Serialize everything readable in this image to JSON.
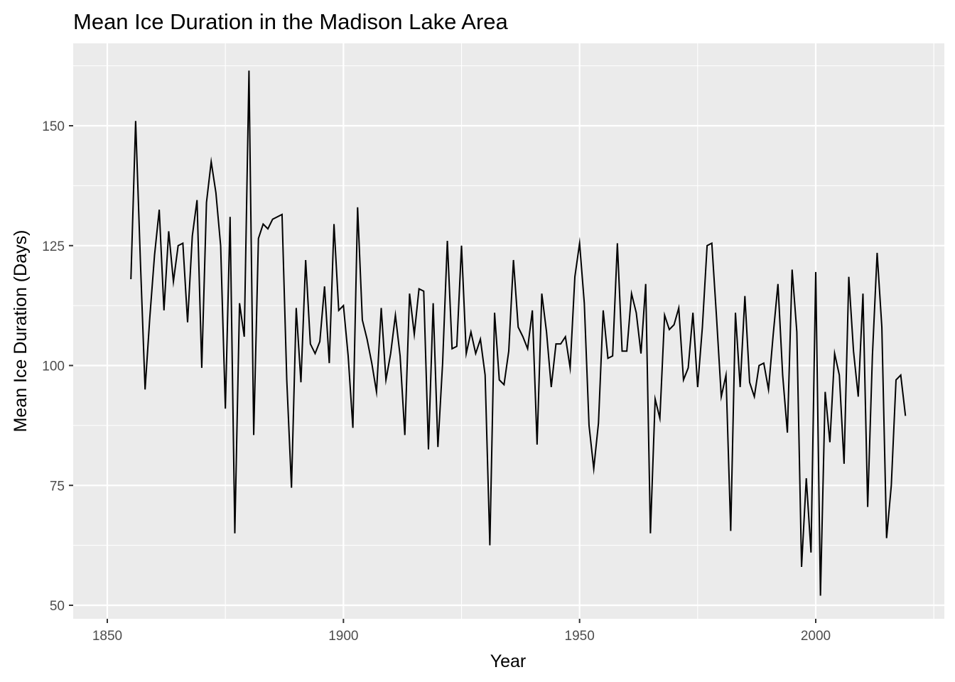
{
  "chart_data": {
    "type": "line",
    "title": "Mean Ice Duration in the Madison Lake Area",
    "xlabel": "Year",
    "ylabel": "Mean Ice Duration (Days)",
    "xlim": [
      1842,
      1327
    ],
    "ylim": [
      48,
      164
    ],
    "x_ticks": [
      1850,
      1900,
      1950,
      2000
    ],
    "y_ticks": [
      50,
      75,
      100,
      125,
      150
    ],
    "x_tick_labels": [
      "1850",
      "1900",
      "1950",
      "2000"
    ],
    "y_tick_labels": [
      "50",
      "75",
      "100",
      "125",
      "150"
    ],
    "grid": true,
    "panel_background": "#ebebeb",
    "grid_color": "#ffffff",
    "line_color": "#000000",
    "series": [
      {
        "x": [
          1855,
          1856,
          1857,
          1858,
          1859,
          1860,
          1861,
          1862,
          1863,
          1864,
          1865,
          1866,
          1867,
          1868,
          1869,
          1870,
          1871,
          1872,
          1873,
          1874,
          1875,
          1876,
          1877,
          1878,
          1879,
          1880,
          1881,
          1882,
          1883,
          1884,
          1885,
          1886,
          1887,
          1888,
          1889,
          1890,
          1891,
          1892,
          1893,
          1894,
          1895,
          1896,
          1897,
          1898,
          1899,
          1900,
          1901,
          1902,
          1903,
          1904,
          1905,
          1906,
          1907,
          1908,
          1909,
          1910,
          1911,
          1912,
          1913,
          1914,
          1915,
          1916,
          1917,
          1918,
          1919,
          1920,
          1921,
          1922,
          1923,
          1924,
          1925,
          1926,
          1927,
          1928,
          1929,
          1930,
          1931,
          1932,
          1933,
          1934,
          1935,
          1936,
          1937,
          1938,
          1939,
          1940,
          1941,
          1942,
          1943,
          1944,
          1945,
          1946,
          1947,
          1948,
          1949,
          1950,
          1951,
          1952,
          1953,
          1954,
          1955,
          1956,
          1957,
          1958,
          1959,
          1960,
          1961,
          1962,
          1963,
          1964,
          1965,
          1966,
          1967,
          1968,
          1969,
          1970,
          1971,
          1972,
          1973,
          1974,
          1975,
          1976,
          1977,
          1978,
          1979,
          1980,
          1981,
          1982,
          1983,
          1984,
          1985,
          1986,
          1987,
          1988,
          1989,
          1990,
          1991,
          1992,
          1993,
          1994,
          1995,
          1996,
          1997,
          1998,
          1999,
          2000,
          2001,
          2002,
          2003,
          2004,
          2005,
          2006,
          2007,
          2008,
          2009,
          2010,
          2011,
          2012,
          2013,
          2014,
          2015,
          2016,
          2017,
          2018,
          2019
        ],
        "values": [
          118,
          151,
          122,
          95,
          110,
          123,
          132.5,
          111.5,
          128,
          117.5,
          125,
          125.5,
          109,
          127,
          134.5,
          99.5,
          134,
          142.5,
          136,
          125,
          91,
          131,
          65,
          113,
          106,
          161.5,
          85.5,
          126.5,
          129.5,
          128.5,
          130.5,
          131,
          131.5,
          97,
          74.5,
          112,
          96.5,
          122,
          104.5,
          102.5,
          105,
          116.5,
          100.5,
          129.5,
          111.5,
          112.5,
          102,
          87,
          133,
          109.5,
          105.5,
          100.5,
          94.5,
          112,
          97,
          102.5,
          110.5,
          102,
          85.5,
          115,
          106.5,
          116,
          115.5,
          82.5,
          113,
          83,
          100.5,
          126,
          103.5,
          104,
          125,
          102.5,
          107,
          102.5,
          105.5,
          98,
          62.5,
          111,
          97,
          96,
          103,
          122,
          108,
          106,
          103.5,
          111.5,
          83.5,
          115,
          107,
          95.5,
          104.5,
          104.5,
          106,
          99.5,
          118.5,
          125.5,
          113,
          87.5,
          78.5,
          88,
          111.5,
          101.5,
          102,
          125.5,
          103,
          103,
          115,
          111,
          102.5,
          117,
          65,
          93,
          89,
          110.5,
          107.5,
          108.5,
          112,
          97,
          99.5,
          111,
          95.5,
          108,
          125,
          125.5,
          110,
          93.5,
          98,
          65.5,
          111,
          95.5,
          114.5,
          96.5,
          93.5,
          100,
          100.5,
          95,
          106.5,
          117,
          98,
          86,
          120,
          107,
          58,
          76.5,
          61,
          119.5,
          52,
          94.5,
          84,
          102.5,
          98,
          79.5,
          118.5,
          103,
          93.5,
          115,
          70.5,
          102,
          123.5,
          108,
          64,
          75,
          97,
          98,
          89.5
        ]
      }
    ]
  }
}
